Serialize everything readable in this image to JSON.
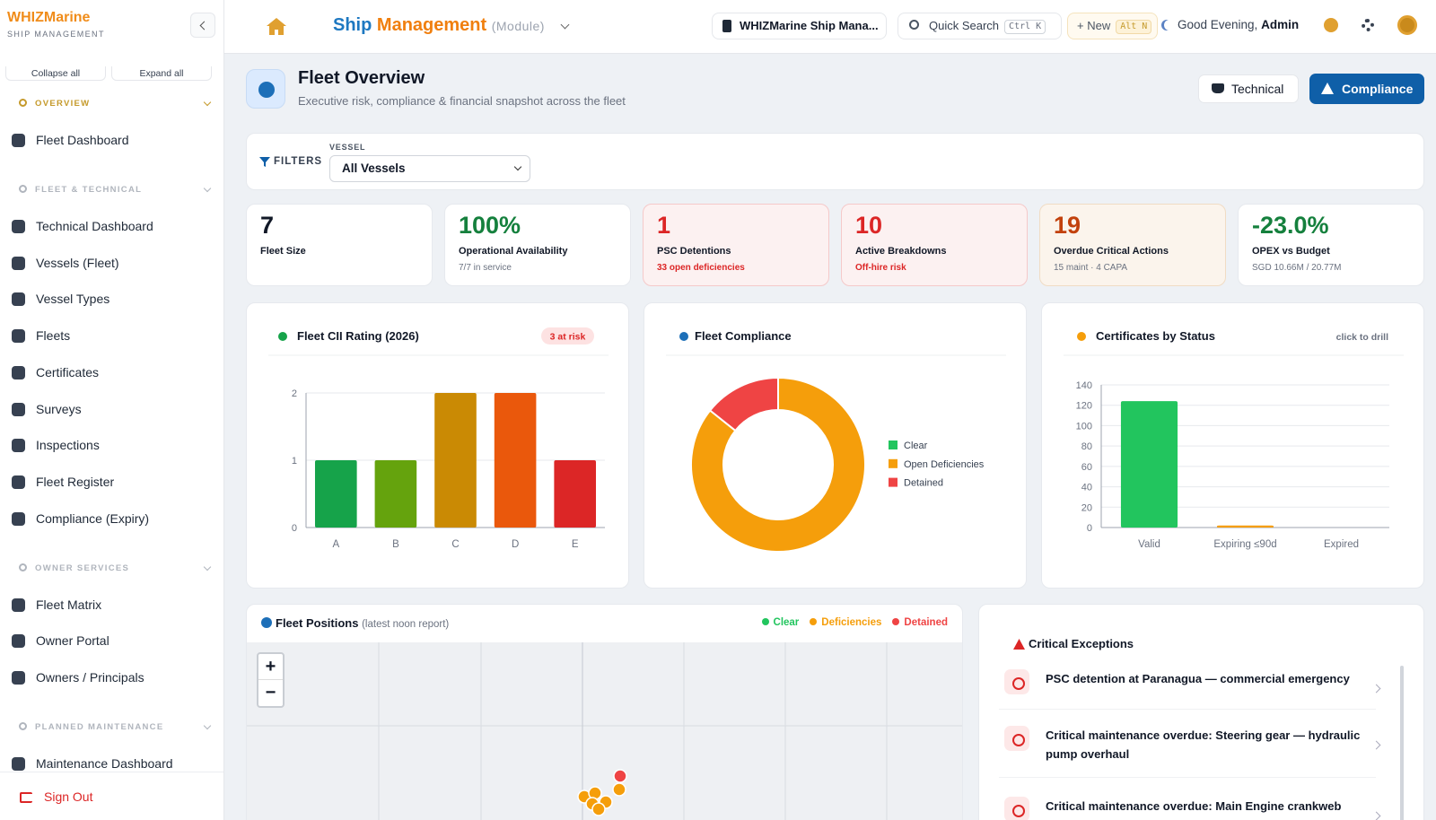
{
  "sidebar": {
    "brand": "WHIZMarine",
    "brand_sub": "SHIP MANAGEMENT",
    "collapse_all": "Collapse all",
    "expand_all": "Expand all",
    "sections": [
      {
        "title": "OVERVIEW",
        "items": [
          "Fleet Dashboard"
        ]
      },
      {
        "title": "FLEET & TECHNICAL",
        "items": [
          "Technical Dashboard",
          "Vessels (Fleet)",
          "Vessel Types",
          "Fleets",
          "Certificates",
          "Surveys",
          "Inspections",
          "Fleet Register",
          "Compliance (Expiry)"
        ]
      },
      {
        "title": "OWNER SERVICES",
        "items": [
          "Fleet Matrix",
          "Owner Portal",
          "Owners / Principals"
        ]
      },
      {
        "title": "PLANNED MAINTENANCE",
        "items": [
          "Maintenance Dashboard"
        ]
      }
    ],
    "sign_out": "Sign Out"
  },
  "topbar": {
    "module_a": "Ship",
    "module_b": "Management",
    "module_tag": "(Module)",
    "company": "WHIZMarine Ship Mana...",
    "search": "Quick Search",
    "search_key": "Ctrl K",
    "new": "+ New",
    "new_key": "Alt N",
    "greeting": "Good Evening,",
    "user": "Admin"
  },
  "header": {
    "title": "Fleet Overview",
    "subtitle": "Executive risk, compliance & financial snapshot across the fleet",
    "btn_technical": "Technical",
    "btn_compliance": "Compliance"
  },
  "filters": {
    "label": "FILTERS",
    "vessel_label": "VESSEL",
    "vessel_value": "All Vessels"
  },
  "kpis": [
    {
      "value": "7",
      "label": "Fleet Size",
      "color": "#111827",
      "tone": "plain"
    },
    {
      "value": "100%",
      "label": "Operational Availability",
      "sub": "7/7 in service",
      "color": "#15803d",
      "tone": "plain"
    },
    {
      "value": "1",
      "label": "PSC Detentions",
      "sub": "33 open deficiencies",
      "color": "#dc2626",
      "tone": "danger"
    },
    {
      "value": "10",
      "label": "Active Breakdowns",
      "sub": "Off-hire risk",
      "color": "#dc2626",
      "tone": "danger"
    },
    {
      "value": "19",
      "label": "Overdue Critical Actions",
      "sub": "15 maint · 4 CAPA",
      "color": "#c2410c",
      "tone": "warn"
    },
    {
      "value": "-23.0%",
      "label": "OPEX vs Budget",
      "sub": "SGD 10.66M / 20.77M",
      "color": "#15803d",
      "tone": "plain"
    }
  ],
  "chart_data": [
    {
      "type": "bar",
      "title": "Fleet CII Rating (2026)",
      "badge": "3 at risk",
      "categories": [
        "A",
        "B",
        "C",
        "D",
        "E"
      ],
      "values": [
        1,
        1,
        2,
        2,
        1
      ],
      "colors": [
        "#16a34a",
        "#65a30d",
        "#ca8a04",
        "#ea580c",
        "#dc2626"
      ],
      "ylim": [
        0,
        2
      ],
      "yticks": [
        0,
        1,
        2
      ],
      "grid": true
    },
    {
      "type": "donut",
      "title": "Fleet Compliance",
      "categories": [
        "Clear",
        "Open Deficiencies",
        "Detained"
      ],
      "values": [
        0,
        6,
        1
      ],
      "colors": [
        "#22c55e",
        "#f59e0b",
        "#ef4444"
      ],
      "legend": "right"
    },
    {
      "type": "bar",
      "title": "Certificates by Status",
      "note": "click to drill",
      "categories": [
        "Valid",
        "Expiring ≤90d",
        "Expired"
      ],
      "values": [
        124,
        2,
        0
      ],
      "colors": [
        "#22c55e",
        "#f59e0b",
        "#ef4444"
      ],
      "ylim": [
        0,
        140
      ],
      "yticks": [
        0,
        20,
        40,
        60,
        80,
        100,
        120,
        140
      ],
      "grid": true
    }
  ],
  "map": {
    "title": "Fleet Positions",
    "subtitle": "(latest noon report)",
    "legend": [
      {
        "name": "Clear",
        "color": "#22c55e"
      },
      {
        "name": "Deficiencies",
        "color": "#f59e0b"
      },
      {
        "name": "Detained",
        "color": "#ef4444"
      }
    ],
    "zoom_in": "+",
    "zoom_out": "−"
  },
  "exceptions": {
    "title": "Critical Exceptions",
    "items": [
      "PSC detention at Paranagua — commercial emergency",
      "Critical maintenance overdue: Steering gear — hydraulic pump overhaul",
      "Critical maintenance overdue: Main Engine crankweb"
    ]
  }
}
